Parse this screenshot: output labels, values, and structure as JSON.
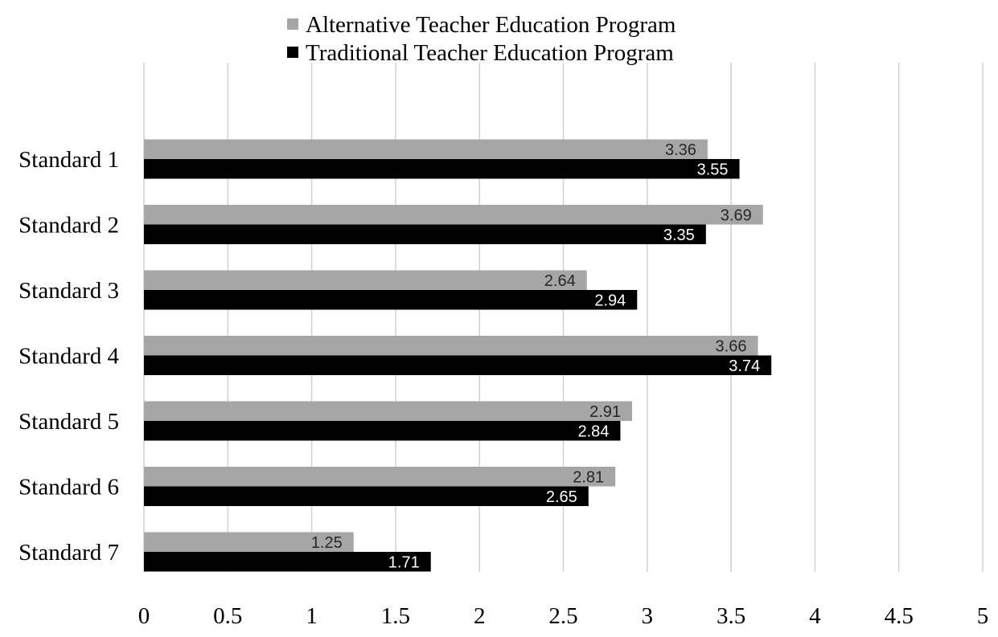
{
  "chart_data": {
    "type": "bar",
    "orientation": "horizontal",
    "categories": [
      "Standard 1",
      "Standard 2",
      "Standard 3",
      "Standard 4",
      "Standard 5",
      "Standard 6",
      "Standard 7"
    ],
    "series": [
      {
        "name": "Alternative Teacher Education Program",
        "color": "#a6a6a6",
        "label_color": "#262626",
        "values": [
          3.36,
          3.69,
          2.64,
          3.66,
          2.91,
          2.81,
          1.25
        ]
      },
      {
        "name": "Traditional Teacher Education Program",
        "color": "#000000",
        "label_color": "#ffffff",
        "values": [
          3.55,
          3.35,
          2.94,
          3.74,
          2.84,
          2.65,
          1.71
        ]
      }
    ],
    "xlim": [
      0,
      5
    ],
    "xticks": [
      "0",
      "0.5",
      "1",
      "1.5",
      "2",
      "2.5",
      "3",
      "3.5",
      "4",
      "4.5",
      "5"
    ],
    "grid": true,
    "legend": "top-center",
    "title": "",
    "xlabel": "",
    "ylabel": ""
  }
}
